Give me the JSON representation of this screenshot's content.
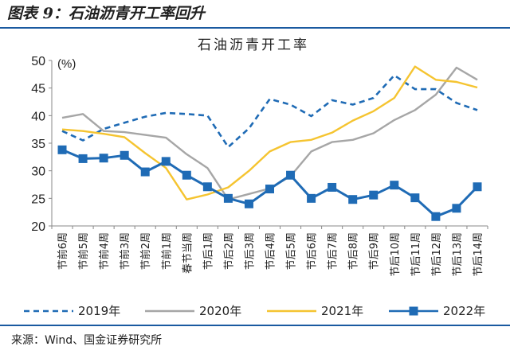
{
  "heading": "图表 9：石油沥青开工率回升",
  "source": "来源：Wind、国金证券研究所",
  "chart_data": {
    "type": "line",
    "title": "石油沥青开工率",
    "ylabel": "(%)",
    "xlabel": "",
    "ylim": [
      20,
      50
    ],
    "yticks": [
      20,
      25,
      30,
      35,
      40,
      45,
      50
    ],
    "grid": false,
    "legend_position": "bottom",
    "categories": [
      "节前6周",
      "节前5周",
      "节前4周",
      "节前3周",
      "节前2周",
      "节前1周",
      "春节当周",
      "节后1周",
      "节后2周",
      "节后3周",
      "节后4周",
      "节后5周",
      "节后6周",
      "节后7周",
      "节后8周",
      "节后9周",
      "节后10周",
      "节后11周",
      "节后12周",
      "节后13周",
      "节后14周"
    ],
    "series": [
      {
        "name": "2019年",
        "color": "#1f6bb5",
        "style": "dashed",
        "marker": "none",
        "values": [
          37.2,
          35.5,
          37.6,
          38.7,
          39.8,
          40.5,
          40.3,
          40.0,
          34.3,
          37.7,
          43.0,
          42.0,
          39.9,
          42.8,
          42.0,
          43.2,
          47.3,
          44.8,
          44.8,
          42.3,
          41.0
        ]
      },
      {
        "name": "2020年",
        "color": "#a6a6a6",
        "style": "solid",
        "marker": "none",
        "values": [
          39.6,
          40.3,
          37.2,
          37.0,
          36.5,
          36.0,
          33.0,
          30.5,
          24.8,
          25.8,
          26.8,
          29.0,
          33.5,
          35.2,
          35.6,
          36.8,
          39.2,
          41.0,
          43.8,
          48.7,
          46.5
        ]
      },
      {
        "name": "2021年",
        "color": "#f5c430",
        "style": "solid",
        "marker": "none",
        "values": [
          37.5,
          37.2,
          36.7,
          36.1,
          33.2,
          30.5,
          24.8,
          25.7,
          27.0,
          30.0,
          33.5,
          35.2,
          35.6,
          36.9,
          39.1,
          40.8,
          43.2,
          48.9,
          46.5,
          46.1,
          45.1
        ]
      },
      {
        "name": "2022年",
        "color": "#1f6bb5",
        "style": "solid",
        "marker": "square",
        "values": [
          33.8,
          32.2,
          32.3,
          32.8,
          29.8,
          31.7,
          29.2,
          27.1,
          25.0,
          24.0,
          26.7,
          29.2,
          25.0,
          27.0,
          24.8,
          25.6,
          27.4,
          25.1,
          21.7,
          23.2,
          27.1
        ]
      }
    ]
  }
}
